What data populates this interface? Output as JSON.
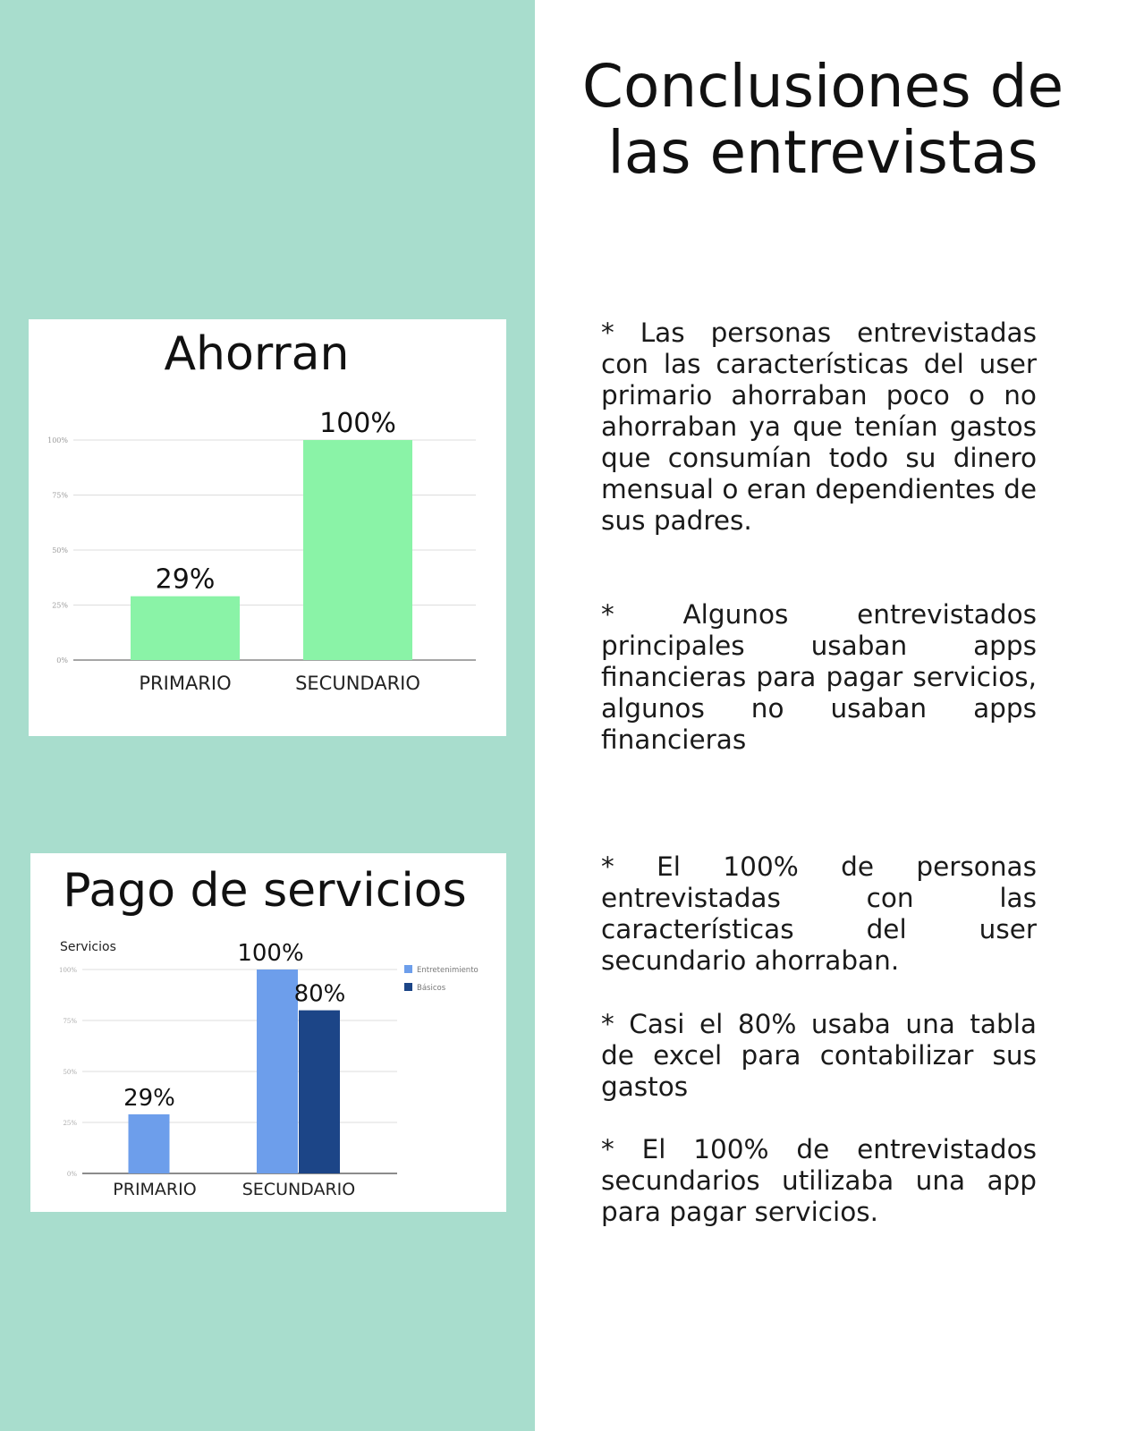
{
  "page": {
    "title": "Conclusiones de las entrevistas",
    "paragraphs": [
      "* Las personas entrevistadas con las características del user primario ahorraban poco o no ahorraban ya que tenían gastos que consumían todo su dinero mensual o eran dependientes de sus padres.",
      "* Algunos entrevistados principales usaban apps financieras para pagar servicios, algunos no usaban apps financieras",
      "* El 100% de personas entrevistadas con las características del user secundario ahorraban.",
      "* Casi el 80% usaba una tabla de excel para contabilizar sus gastos",
      "* El 100% de entrevistados secundarios utilizaba una app para pagar servicios."
    ]
  },
  "colors": {
    "panel": "#a8ddcd",
    "ahorran_bar": "#8af3a7",
    "entretenimiento": "#6d9eeb",
    "basicos": "#1c4587"
  },
  "chart_data": [
    {
      "type": "bar",
      "title": "Ahorran",
      "categories": [
        "PRIMARIO",
        "SECUNDARIO"
      ],
      "values": [
        29,
        100
      ],
      "data_labels": [
        "29%",
        "100%"
      ],
      "ylim": [
        0,
        100
      ],
      "yticks": [
        0,
        25,
        50,
        75,
        100
      ],
      "ytick_labels": [
        "0%",
        "25%",
        "50%",
        "75%",
        "100%"
      ],
      "grid": true
    },
    {
      "type": "bar",
      "title": "Pago de servicios",
      "subtitle": "Servicios",
      "categories": [
        "PRIMARIO",
        "SECUNDARIO"
      ],
      "series": [
        {
          "name": "Entretenimiento",
          "values": [
            29,
            100
          ],
          "data_labels": [
            "29%",
            "100%"
          ]
        },
        {
          "name": "Básicos",
          "values": [
            null,
            80
          ],
          "data_labels": [
            "",
            "80%"
          ]
        }
      ],
      "ylim": [
        0,
        100
      ],
      "yticks": [
        0,
        25,
        50,
        75,
        100
      ],
      "ytick_labels": [
        "0%",
        "25%",
        "50%",
        "75%",
        "100%"
      ],
      "grid": true,
      "legend": "right"
    }
  ]
}
